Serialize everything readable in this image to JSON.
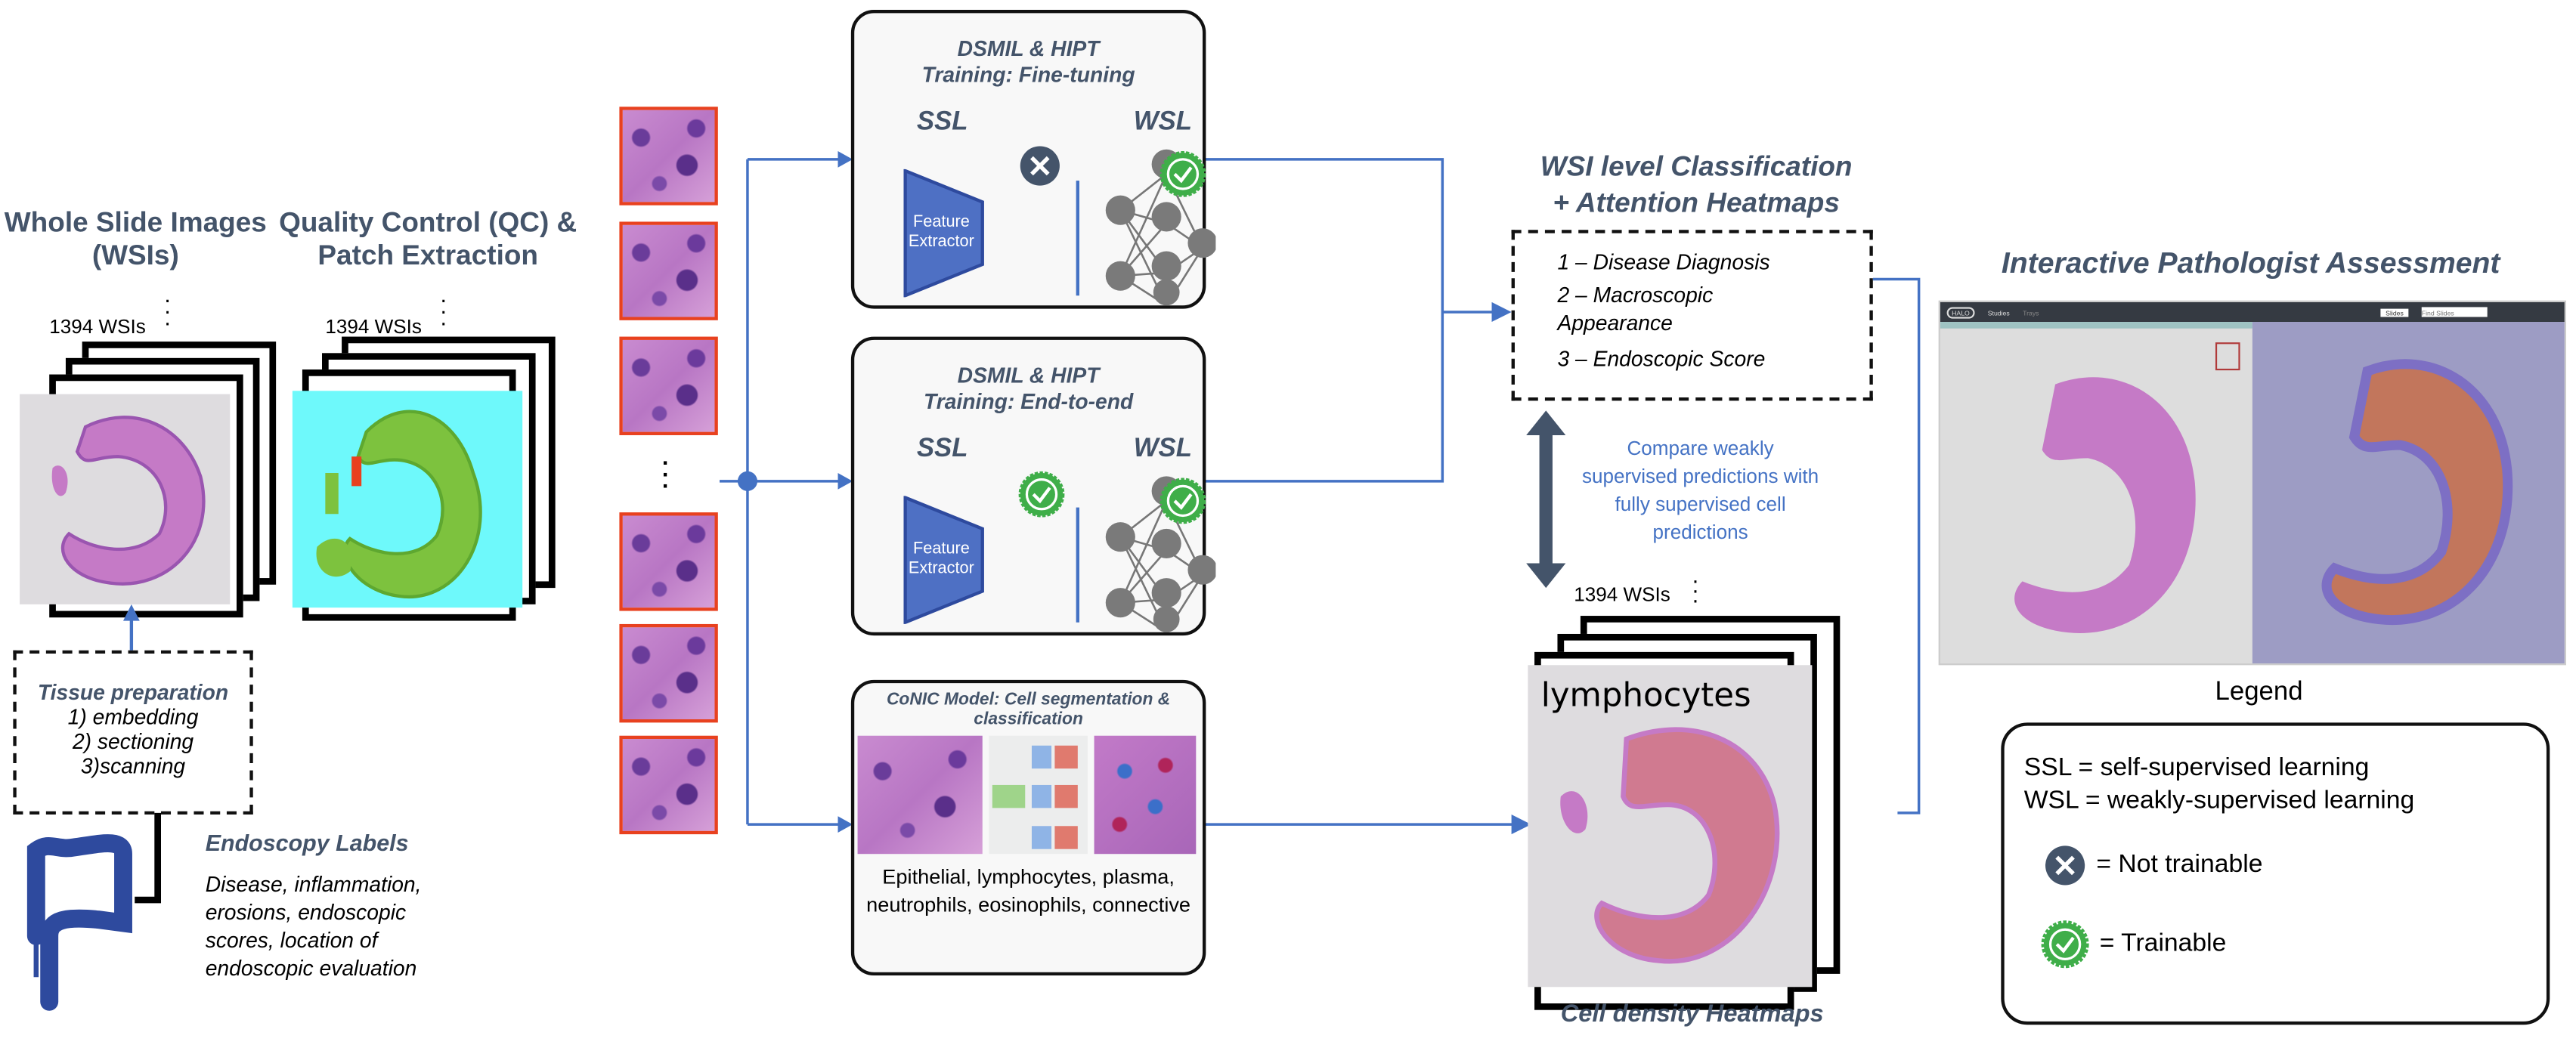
{
  "wsi": {
    "title": "Whole Slide Images (WSIs)",
    "count": "1394 WSIs"
  },
  "qc": {
    "title": "Quality Control (QC) & Patch Extraction",
    "count": "1394 WSIs"
  },
  "tissue": {
    "title": "Tissue preparation",
    "steps": [
      "1) embedding",
      "2) sectioning",
      "3)scanning"
    ]
  },
  "endoscopy": {
    "title": "Endoscopy Labels",
    "text": "Disease, inflammation, erosions, endoscopic scores, location of endoscopic evaluation"
  },
  "finetune": {
    "title1": "DSMIL & HIPT",
    "title2": "Training: Fine-tuning",
    "ssl": "SSL",
    "wsl": "WSL",
    "extractor": "Feature Extractor"
  },
  "endtoend": {
    "title1": "DSMIL & HIPT",
    "title2": "Training: End-to-end",
    "ssl": "SSL",
    "wsl": "WSL",
    "extractor": "Feature Extractor"
  },
  "conic": {
    "title": "CoNIC Model: Cell segmentation & classification",
    "cells": "Epithelial, lymphocytes, plasma, neutrophils, eosinophils, connective"
  },
  "classification": {
    "title1": "WSI level Classification",
    "title2": "+ Attention Heatmaps",
    "items": [
      "1 – Disease Diagnosis",
      "2 – Macroscopic Appearance",
      "3 – Endoscopic Score"
    ]
  },
  "compare": "Compare weakly supervised predictions with fully supervised cell predictions",
  "density": {
    "count": "1394 WSIs",
    "overlay": "lymphocytes",
    "title": "Cell density Heatmaps"
  },
  "assessment": {
    "title": "Interactive Pathologist Assessment",
    "app_logo": "HALO",
    "nav": [
      "Studies",
      "Trays"
    ],
    "search_scope": "Slides",
    "search_placeholder": "Find Slides"
  },
  "legend": {
    "title": "Legend",
    "ssl": "SSL = self-supervised learning",
    "wsl": "WSL = weakly-supervised learning",
    "not_trainable": "= Not trainable",
    "trainable": "= Trainable"
  },
  "colors": {
    "title": "#44546A",
    "accent": "#4472C4",
    "trainable": "#3fae49",
    "not_trainable": "#44546A",
    "patch_border": "#e8411f"
  }
}
